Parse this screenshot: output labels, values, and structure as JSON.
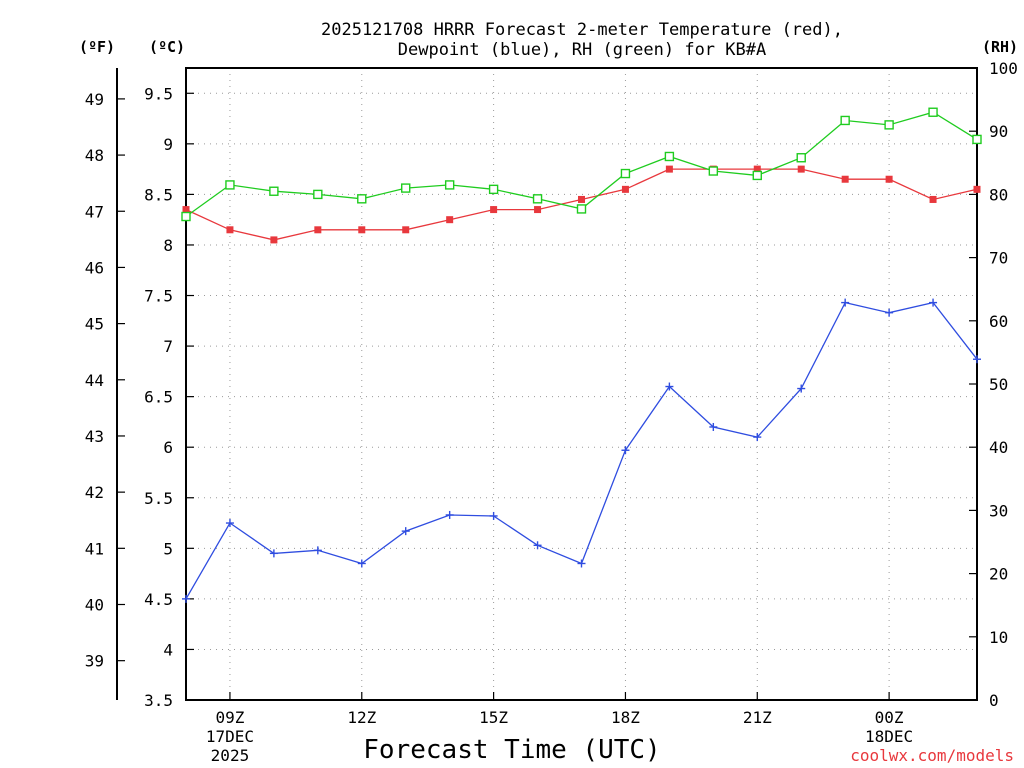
{
  "chart_data": {
    "type": "line",
    "title_line1": "2025121708 HRRR Forecast 2-meter Temperature (red),",
    "title_line2": "Dewpoint (blue), RH (green) for KB#A",
    "xlabel": "Forecast Time (UTC)",
    "units_left_f": "(ºF)",
    "units_left_c": "(ºC)",
    "units_right": "(RH)",
    "watermark": "coolwx.com/models",
    "x_hours": [
      8,
      9,
      10,
      11,
      12,
      13,
      14,
      15,
      16,
      17,
      18,
      19,
      20,
      21,
      22,
      23,
      24,
      25,
      26
    ],
    "x_ticks": [
      {
        "hour": 9,
        "label": "09Z",
        "label2": "17DEC",
        "label3": "2025"
      },
      {
        "hour": 12,
        "label": "12Z",
        "label2": "",
        "label3": ""
      },
      {
        "hour": 15,
        "label": "15Z",
        "label2": "",
        "label3": ""
      },
      {
        "hour": 18,
        "label": "18Z",
        "label2": "",
        "label3": ""
      },
      {
        "hour": 21,
        "label": "21Z",
        "label2": "",
        "label3": ""
      },
      {
        "hour": 24,
        "label": "00Z",
        "label2": "18DEC",
        "label3": ""
      }
    ],
    "x_range": [
      8,
      26
    ],
    "y_left_c_range": [
      3.5,
      9.75
    ],
    "y_left_c_ticks": [
      {
        "v": 3.5,
        "label": "3.5"
      },
      {
        "v": 4,
        "label": "4"
      },
      {
        "v": 4.5,
        "label": "4.5"
      },
      {
        "v": 5,
        "label": "5"
      },
      {
        "v": 5.5,
        "label": "5.5"
      },
      {
        "v": 6,
        "label": "6"
      },
      {
        "v": 6.5,
        "label": "6.5"
      },
      {
        "v": 7,
        "label": "7"
      },
      {
        "v": 7.5,
        "label": "7.5"
      },
      {
        "v": 8,
        "label": "8"
      },
      {
        "v": 8.5,
        "label": "8.5"
      },
      {
        "v": 9,
        "label": "9"
      },
      {
        "v": 9.5,
        "label": "9.5"
      }
    ],
    "y_left_f_ticks": [
      {
        "v": 39,
        "label": "39"
      },
      {
        "v": 40,
        "label": "40"
      },
      {
        "v": 41,
        "label": "41"
      },
      {
        "v": 42,
        "label": "42"
      },
      {
        "v": 43,
        "label": "43"
      },
      {
        "v": 44,
        "label": "44"
      },
      {
        "v": 45,
        "label": "45"
      },
      {
        "v": 46,
        "label": "46"
      },
      {
        "v": 47,
        "label": "47"
      },
      {
        "v": 48,
        "label": "48"
      },
      {
        "v": 49,
        "label": "49"
      }
    ],
    "y_right_range": [
      0,
      100
    ],
    "y_right_ticks": [
      {
        "v": 0,
        "label": "0"
      },
      {
        "v": 10,
        "label": "10"
      },
      {
        "v": 20,
        "label": "20"
      },
      {
        "v": 30,
        "label": "30"
      },
      {
        "v": 40,
        "label": "40"
      },
      {
        "v": 50,
        "label": "50"
      },
      {
        "v": 60,
        "label": "60"
      },
      {
        "v": 70,
        "label": "70"
      },
      {
        "v": 80,
        "label": "80"
      },
      {
        "v": 90,
        "label": "90"
      },
      {
        "v": 100,
        "label": "100"
      }
    ],
    "series": [
      {
        "name": "Temperature (ºC)",
        "color": "#e8383d",
        "marker": "filled-square",
        "axis": "left",
        "values": [
          8.35,
          8.15,
          8.05,
          8.15,
          8.15,
          8.15,
          8.25,
          8.35,
          8.35,
          8.45,
          8.55,
          8.75,
          8.75,
          8.75,
          8.75,
          8.65,
          8.65,
          8.45,
          8.55
        ]
      },
      {
        "name": "Dewpoint (ºC)",
        "color": "#2f4de0",
        "marker": "plus",
        "axis": "left",
        "values": [
          4.5,
          5.25,
          4.95,
          4.98,
          4.85,
          5.17,
          5.33,
          5.32,
          5.03,
          4.85,
          5.97,
          6.6,
          6.2,
          6.1,
          6.58,
          7.43,
          7.33,
          7.43,
          6.87
        ]
      },
      {
        "name": "RH (%)",
        "color": "#1fcc1f",
        "marker": "open-square",
        "axis": "right",
        "values": [
          76.5,
          81.5,
          80.5,
          80.0,
          79.3,
          81.0,
          81.5,
          80.8,
          79.3,
          77.7,
          83.3,
          86.0,
          83.7,
          83.0,
          85.8,
          91.7,
          91.0,
          93.0,
          88.7
        ]
      }
    ]
  }
}
